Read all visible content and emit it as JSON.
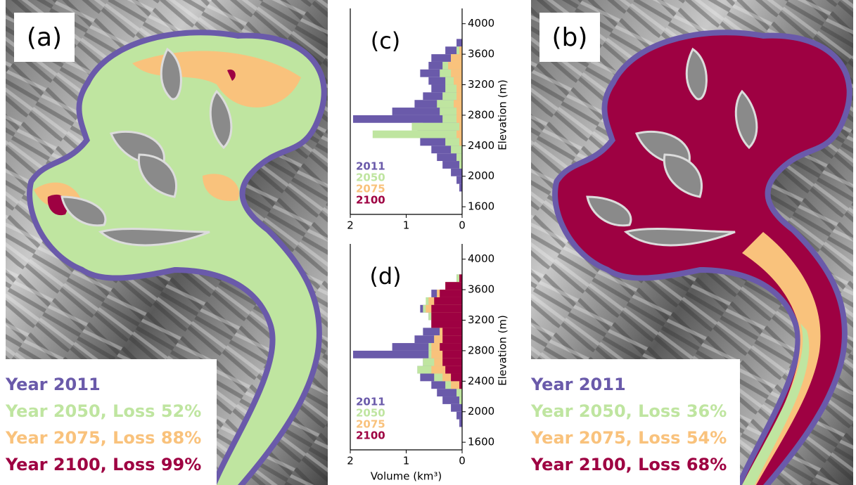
{
  "maps": [
    {
      "label": "(a)",
      "legend": [
        {
          "text": "Year 2011",
          "color": "#6a5aaa"
        },
        {
          "text": "Year 2050, Loss 52%",
          "color": "#bfe5a0"
        },
        {
          "text": "Year 2075, Loss 88%",
          "color": "#f9c27c"
        },
        {
          "text": "Year 2100, Loss 99%",
          "color": "#9e0142"
        }
      ]
    },
    {
      "label": "(b)",
      "legend": [
        {
          "text": "Year 2011",
          "color": "#6a5aaa"
        },
        {
          "text": "Year 2050, Loss 36%",
          "color": "#bfe5a0"
        },
        {
          "text": "Year 2075, Loss 54%",
          "color": "#f9c27c"
        },
        {
          "text": "Year 2100, Loss 68%",
          "color": "#9e0142"
        }
      ]
    }
  ],
  "chart_data": [
    {
      "type": "histogram",
      "label": "(c)",
      "ylabel": "Elevation (m)",
      "bins": [
        1800,
        1900,
        2000,
        2100,
        2200,
        2300,
        2400,
        2500,
        2600,
        2700,
        2800,
        2900,
        3000,
        3100,
        3200,
        3300,
        3400,
        3500,
        3600,
        3700,
        3800
      ],
      "series": [
        {
          "name": "2011",
          "color": "#6a5aaa",
          "values": [
            0.05,
            0.1,
            0.2,
            0.35,
            0.45,
            0.55,
            0.75,
            0.8,
            0.7,
            1.95,
            1.25,
            0.85,
            0.7,
            0.55,
            0.6,
            0.75,
            0.6,
            0.55,
            0.3,
            0.1
          ]
        },
        {
          "name": "2050",
          "color": "#bfe5a0",
          "values": [
            0,
            0,
            0,
            0.05,
            0.1,
            0.2,
            0.3,
            1.6,
            0.9,
            0.35,
            0.4,
            0.45,
            0.35,
            0.3,
            0.3,
            0.4,
            0.35,
            0.2,
            0.1,
            0
          ]
        },
        {
          "name": "2075",
          "color": "#f9c27c",
          "values": [
            0,
            0,
            0,
            0,
            0,
            0,
            0.05,
            0.1,
            0.05,
            0.1,
            0.1,
            0.15,
            0.1,
            0.1,
            0.15,
            0.2,
            0.25,
            0.2,
            0.05,
            0
          ]
        },
        {
          "name": "2100",
          "color": "#9e0142",
          "values": [
            0,
            0,
            0,
            0,
            0,
            0,
            0,
            0,
            0,
            0,
            0,
            0,
            0,
            0,
            0,
            0,
            0,
            0,
            0,
            0
          ]
        }
      ],
      "xlim": [
        2,
        0
      ],
      "xticks": [
        2,
        1,
        0
      ],
      "ylim": [
        1500,
        4200
      ],
      "yticks": [
        1600,
        2000,
        2400,
        2800,
        3200,
        3600,
        4000
      ]
    },
    {
      "type": "histogram",
      "label": "(d)",
      "ylabel": "Elevation (m)",
      "xlabel": "Volume (km³)",
      "bins": [
        1800,
        1900,
        2000,
        2100,
        2200,
        2300,
        2400,
        2500,
        2600,
        2700,
        2800,
        2900,
        3000,
        3100,
        3200,
        3300,
        3400,
        3500,
        3600,
        3700,
        3800
      ],
      "series": [
        {
          "name": "2011",
          "color": "#6a5aaa",
          "values": [
            0.05,
            0.1,
            0.2,
            0.35,
            0.45,
            0.55,
            0.75,
            0.8,
            0.7,
            1.95,
            1.25,
            0.85,
            0.7,
            0.55,
            0.6,
            0.75,
            0.6,
            0.55,
            0.3,
            0.1
          ]
        },
        {
          "name": "2050",
          "color": "#bfe5a0",
          "values": [
            0,
            0,
            0,
            0.05,
            0.1,
            0.3,
            0.5,
            0.8,
            0.7,
            0.6,
            0.6,
            0.5,
            0.4,
            0.5,
            0.6,
            0.7,
            0.65,
            0.45,
            0.3,
            0.1
          ]
        },
        {
          "name": "2075",
          "color": "#f9c27c",
          "values": [
            0,
            0,
            0,
            0,
            0,
            0.2,
            0.35,
            0.55,
            0.5,
            0.55,
            0.55,
            0.5,
            0.4,
            0.55,
            0.55,
            0.65,
            0.6,
            0.45,
            0.3,
            0.05
          ]
        },
        {
          "name": "2100",
          "color": "#9e0142",
          "values": [
            0,
            0,
            0,
            0,
            0,
            0.05,
            0.2,
            0.3,
            0.35,
            0.35,
            0.4,
            0.35,
            0.35,
            0.55,
            0.55,
            0.55,
            0.5,
            0.4,
            0.3,
            0.05
          ]
        }
      ],
      "xlim": [
        2,
        0
      ],
      "xticks": [
        2,
        1,
        0
      ],
      "ylim": [
        1500,
        4200
      ],
      "yticks": [
        1600,
        2000,
        2400,
        2800,
        3200,
        3600,
        4000
      ]
    }
  ]
}
